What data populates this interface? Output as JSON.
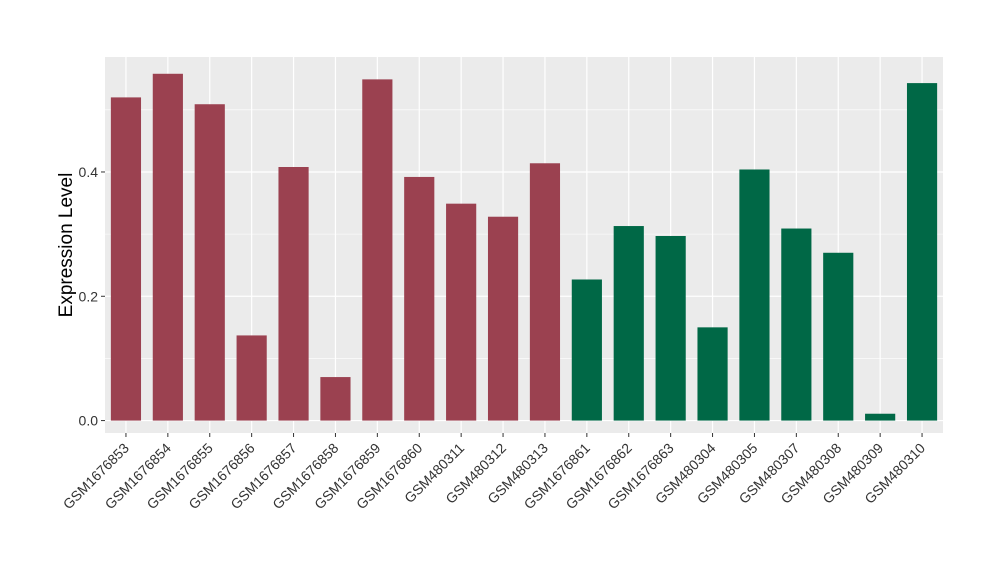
{
  "chart_data": {
    "type": "bar",
    "title": "",
    "xlabel": "",
    "ylabel": "Expression Level",
    "ylim": [
      -0.02,
      0.585
    ],
    "yticks": [
      0.0,
      0.2,
      0.4
    ],
    "ytick_labels": [
      "0.0",
      "0.2",
      "0.4"
    ],
    "grid": true,
    "legend": "none",
    "panel_background": "#ebebeb",
    "grid_color": "#ffffff",
    "categories": [
      "GSM1676853",
      "GSM1676854",
      "GSM1676855",
      "GSM1676856",
      "GSM1676857",
      "GSM1676858",
      "GSM1676859",
      "GSM1676860",
      "GSM480311",
      "GSM480312",
      "GSM480313",
      "GSM1676861",
      "GSM1676862",
      "GSM1676863",
      "GSM480304",
      "GSM480305",
      "GSM480307",
      "GSM480308",
      "GSM480309",
      "GSM480310"
    ],
    "values": [
      0.52,
      0.558,
      0.509,
      0.137,
      0.408,
      0.07,
      0.549,
      0.392,
      0.349,
      0.328,
      0.414,
      0.227,
      0.313,
      0.297,
      0.15,
      0.404,
      0.309,
      0.27,
      0.011,
      0.543
    ],
    "bar_colors": [
      "#9b4150",
      "#9b4150",
      "#9b4150",
      "#9b4150",
      "#9b4150",
      "#9b4150",
      "#9b4150",
      "#9b4150",
      "#9b4150",
      "#9b4150",
      "#9b4150",
      "#006846",
      "#006846",
      "#006846",
      "#006846",
      "#006846",
      "#006846",
      "#006846",
      "#006846",
      "#006846"
    ]
  }
}
